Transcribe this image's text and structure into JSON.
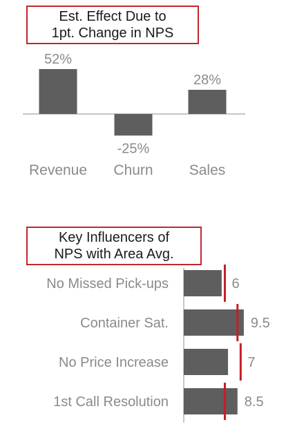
{
  "chart_data": [
    {
      "type": "bar",
      "title": "Est. Effect Due to 1pt. Change in NPS",
      "title_lines": [
        "Est. Effect Due to",
        "1pt. Change in NPS"
      ],
      "categories": [
        "Revenue",
        "Churn",
        "Sales"
      ],
      "values": [
        52,
        -25,
        28
      ],
      "value_labels": [
        "52%",
        "-25%",
        "28%"
      ],
      "bar_color": "#5e5e5e",
      "title_border_color": "#c0272d"
    },
    {
      "type": "bar",
      "orientation": "horizontal",
      "title": "Key Influencers of NPS with Area Avg.",
      "title_lines": [
        "Key Influencers of",
        "NPS with Area Avg."
      ],
      "categories": [
        "No Missed Pick-ups",
        "Container Sat.",
        "No Price Increase",
        "1st Call Resolution"
      ],
      "values": [
        6,
        9.5,
        7,
        8.5
      ],
      "value_labels": [
        "6",
        "9.5",
        "7",
        "8.5"
      ],
      "area_avg": [
        6.5,
        8.5,
        9,
        6.5
      ],
      "bar_color": "#5e5e5e",
      "marker_color": "#c41e24",
      "xlim": [
        0,
        10.5
      ]
    }
  ]
}
